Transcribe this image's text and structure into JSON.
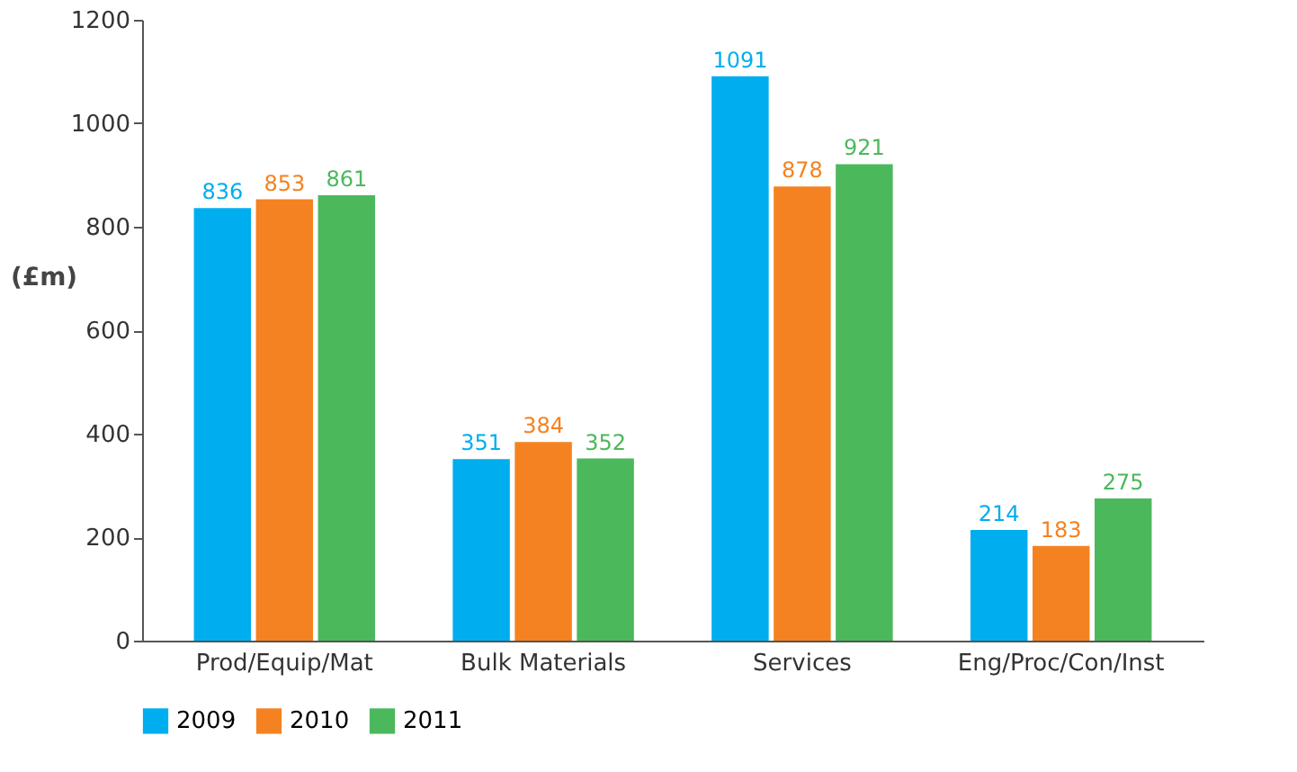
{
  "chart_data": {
    "type": "bar",
    "ylabel": "(£m)",
    "categories": [
      "Prod/Equip/Mat",
      "Bulk Materials",
      "Services",
      "Eng/Proc/Con/Inst"
    ],
    "series": [
      {
        "name": "2009",
        "color": "#00aeef",
        "values": [
          836,
          351,
          1091,
          214
        ]
      },
      {
        "name": "2010",
        "color": "#f58220",
        "values": [
          853,
          384,
          878,
          183
        ]
      },
      {
        "name": "2011",
        "color": "#4cb85c",
        "values": [
          861,
          352,
          921,
          275
        ]
      }
    ],
    "ylim": [
      0,
      1200
    ],
    "yticks": [
      0,
      200,
      400,
      600,
      800,
      1000,
      1200
    ],
    "data_labels": true,
    "legend": "bottom",
    "grid": false
  }
}
